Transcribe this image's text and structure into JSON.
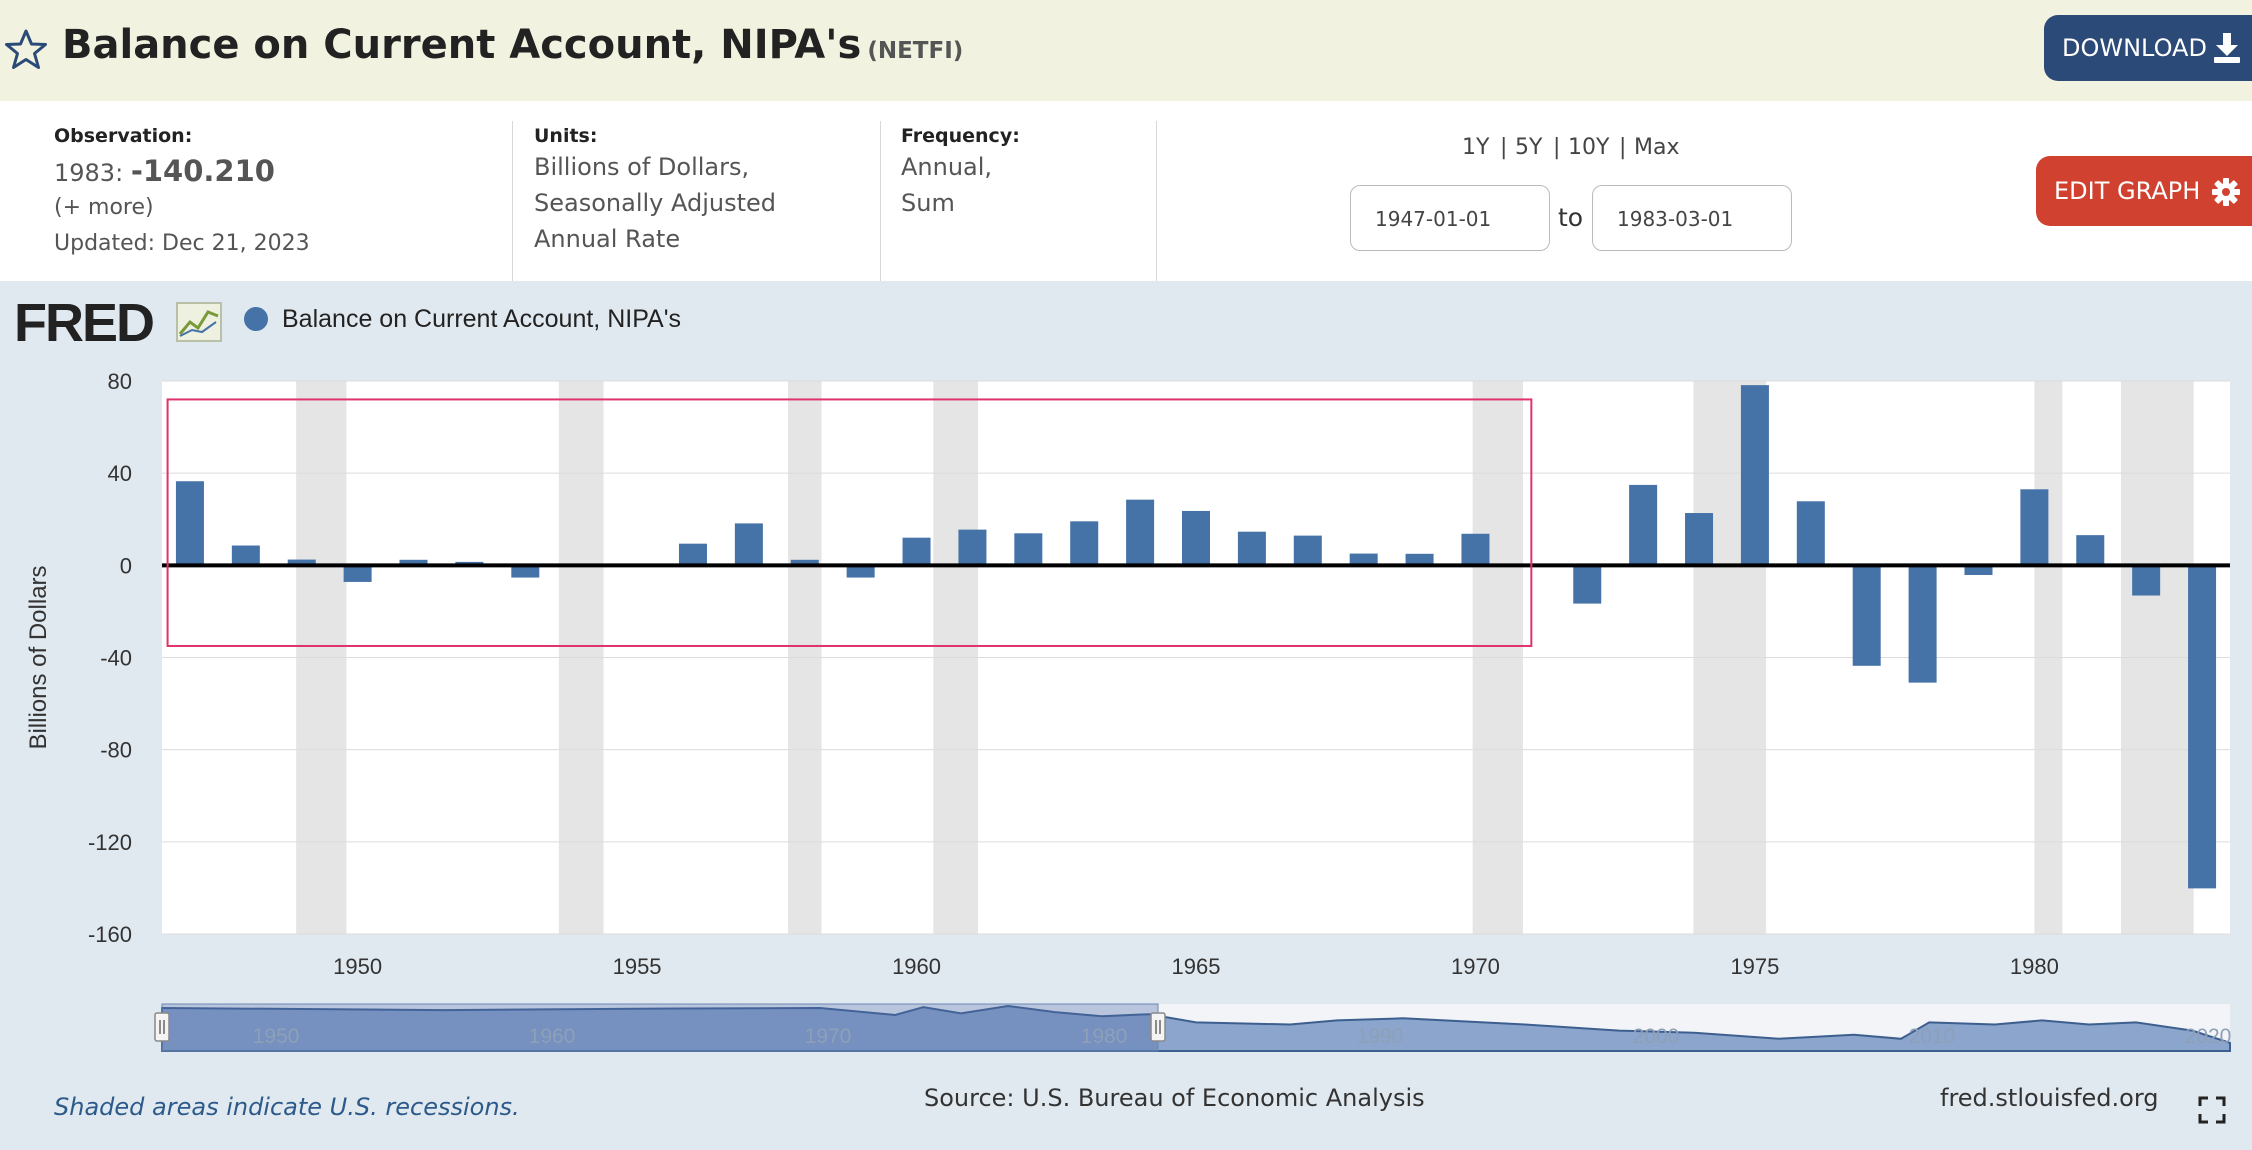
{
  "header": {
    "title": "Balance on Current Account, NIPA's",
    "series_code": "(NETFI)",
    "download_label": "DOWNLOAD"
  },
  "info": {
    "observation_label": "Observation:",
    "observation_year": "1983:",
    "observation_value": "-140.210",
    "more": "(+ more)",
    "updated": "Updated: Dec 21, 2023",
    "units_label": "Units:",
    "units_line1": "Billions of Dollars,",
    "units_line2": "Seasonally Adjusted",
    "units_line3": "Annual Rate",
    "frequency_label": "Frequency:",
    "frequency_line1": "Annual,",
    "frequency_line2": "Sum",
    "range_1y": "1Y",
    "range_5y": "5Y",
    "range_10y": "10Y",
    "range_max": "Max",
    "range_sep": "|",
    "start_date": "1947-01-01",
    "to_label": "to",
    "end_date": "1983-03-01",
    "edit_graph_label": "EDIT GRAPH"
  },
  "logo_text": "FRED",
  "footer": {
    "recession_note": "Shaded areas indicate U.S. recessions.",
    "source": "Source: U.S. Bureau of Economic Analysis",
    "site": "fred.stlouisfed.org"
  },
  "colors": {
    "bar": "#4572a7",
    "recession": "#e5e5e5",
    "highlight_box": "#e0336b",
    "download_button": "#2c4a77",
    "edit_button": "#d0422f"
  },
  "chart_data": {
    "type": "bar",
    "legend": "Balance on Current Account, NIPA's",
    "ylabel": "Billions of Dollars",
    "ylim": [
      -160,
      80
    ],
    "yticks": [
      80,
      40,
      0,
      -40,
      -80,
      -120,
      -160
    ],
    "xtick_labels": [
      "1950",
      "1955",
      "1960",
      "1965",
      "1970",
      "1975",
      "1980"
    ],
    "grid": true,
    "series": [
      {
        "name": "Balance on Current Account, NIPA's",
        "x": [
          1947,
          1948,
          1949,
          1950,
          1951,
          1952,
          1953,
          1954,
          1955,
          1956,
          1957,
          1958,
          1959,
          1960,
          1961,
          1962,
          1963,
          1964,
          1965,
          1966,
          1967,
          1968,
          1969,
          1970,
          1971,
          1972,
          1973,
          1974,
          1975,
          1976,
          1977,
          1978,
          1979,
          1980,
          1981,
          1982,
          1983
        ],
        "values": [
          36.5,
          8.6,
          2.5,
          -7.2,
          2.4,
          1.5,
          -5.3,
          0.3,
          0.4,
          9.4,
          18.2,
          2.4,
          -5.3,
          12.0,
          15.5,
          13.9,
          19.1,
          28.5,
          23.6,
          14.6,
          12.9,
          5.1,
          5.0,
          13.7,
          0.0,
          -16.6,
          34.9,
          22.7,
          78.2,
          27.8,
          -43.6,
          -50.9,
          -4.2,
          33.0,
          13.1,
          -13.1,
          -140.2
        ]
      }
    ],
    "recessions": [
      [
        1948.9,
        1949.8
      ],
      [
        1953.6,
        1954.4
      ],
      [
        1957.7,
        1958.3
      ],
      [
        1960.3,
        1961.1
      ],
      [
        1969.95,
        1970.85
      ],
      [
        1973.9,
        1975.2
      ],
      [
        1980.0,
        1980.5
      ],
      [
        1981.55,
        1982.85
      ]
    ],
    "navigator_labels": [
      "1950",
      "1960",
      "1970",
      "1980",
      "1990",
      "2000",
      "2010",
      "2020"
    ]
  }
}
